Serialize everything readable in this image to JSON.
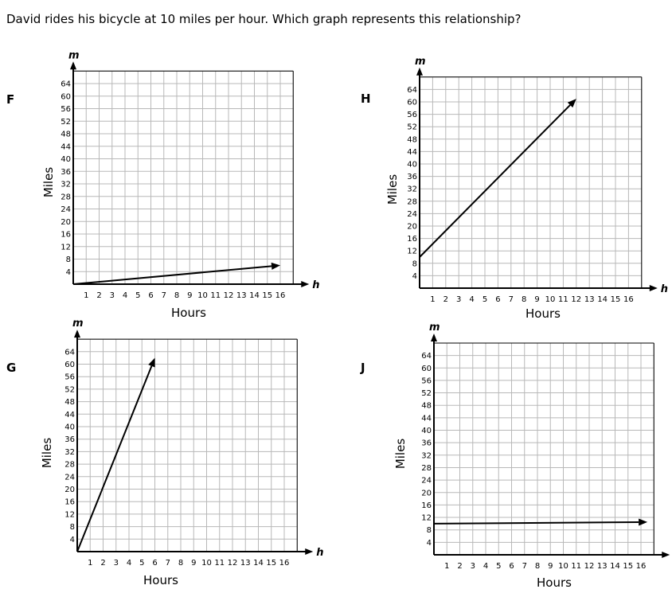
{
  "question": "David rides his bicycle at 10 miles per hour.  Which graph represents this relationship?",
  "chart_data": [
    {
      "id": "F",
      "label": "F",
      "type": "line",
      "xlabel": "Hours",
      "ylabel": "Miles",
      "x_axis_var": "h",
      "y_axis_var": "m",
      "x_ticks": [
        1,
        2,
        3,
        4,
        5,
        6,
        7,
        8,
        9,
        10,
        11,
        12,
        13,
        14,
        15,
        16
      ],
      "y_ticks": [
        4,
        8,
        12,
        16,
        20,
        24,
        28,
        32,
        36,
        40,
        44,
        48,
        52,
        56,
        60,
        64
      ],
      "xlim": [
        0,
        16
      ],
      "ylim": [
        0,
        64
      ],
      "grid": true,
      "series": [
        {
          "x": [
            0,
            16
          ],
          "y": [
            0,
            6
          ]
        }
      ]
    },
    {
      "id": "H",
      "label": "H",
      "type": "line",
      "xlabel": "Hours",
      "ylabel": "Miles",
      "x_axis_var": "h",
      "y_axis_var": "m",
      "x_ticks": [
        1,
        2,
        3,
        4,
        5,
        6,
        7,
        8,
        9,
        10,
        11,
        12,
        13,
        14,
        15,
        16
      ],
      "y_ticks": [
        4,
        8,
        12,
        16,
        20,
        24,
        28,
        32,
        36,
        40,
        44,
        48,
        52,
        56,
        60,
        64
      ],
      "xlim": [
        0,
        16
      ],
      "ylim": [
        0,
        64
      ],
      "grid": true,
      "series": [
        {
          "x": [
            0,
            12
          ],
          "y": [
            10,
            61
          ]
        }
      ]
    },
    {
      "id": "G",
      "label": "G",
      "type": "line",
      "xlabel": "Hours",
      "ylabel": "Miles",
      "x_axis_var": "h",
      "y_axis_var": "m",
      "x_ticks": [
        1,
        2,
        3,
        4,
        5,
        6,
        7,
        8,
        9,
        10,
        11,
        12,
        13,
        14,
        15,
        16
      ],
      "y_ticks": [
        4,
        8,
        12,
        16,
        20,
        24,
        28,
        32,
        36,
        40,
        44,
        48,
        52,
        56,
        60,
        64
      ],
      "xlim": [
        0,
        16
      ],
      "ylim": [
        0,
        64
      ],
      "grid": true,
      "series": [
        {
          "x": [
            0,
            6
          ],
          "y": [
            0,
            62
          ]
        }
      ]
    },
    {
      "id": "J",
      "label": "J",
      "type": "line",
      "xlabel": "Hours",
      "ylabel": "Miles",
      "x_axis_var": "h",
      "y_axis_var": "m",
      "x_ticks": [
        1,
        2,
        3,
        4,
        5,
        6,
        7,
        8,
        9,
        10,
        11,
        12,
        13,
        14,
        15,
        16
      ],
      "y_ticks": [
        4,
        8,
        12,
        16,
        20,
        24,
        28,
        32,
        36,
        40,
        44,
        48,
        52,
        56,
        60,
        64
      ],
      "xlim": [
        0,
        16
      ],
      "ylim": [
        0,
        64
      ],
      "grid": true,
      "series": [
        {
          "x": [
            0,
            16.5
          ],
          "y": [
            10,
            10.5
          ]
        }
      ]
    }
  ]
}
